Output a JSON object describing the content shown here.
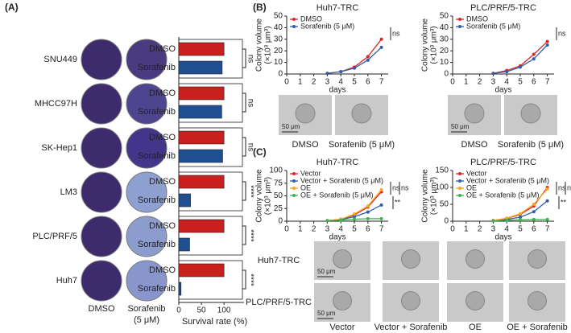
{
  "panel_labels": [
    "(A)",
    "(B)",
    "(C)"
  ],
  "dish_labels": [
    "DMSO",
    "Sorafenib",
    "(5 μM)"
  ],
  "chart_data": [
    {
      "type": "bar",
      "orientation": "horizontal",
      "categories": [
        "SNU449",
        "MHCC97H",
        "SK-Hep1",
        "LM3",
        "PLC/PRF/5",
        "Huh7"
      ],
      "category_colors": [
        "#3b3bb0",
        "#3b3bb0",
        "#3b3bb0",
        "#d83a2e",
        "#d83a2e",
        "#d83a2e"
      ],
      "series": [
        {
          "name": "DMSO",
          "color": "#c8201c",
          "values": [
            100,
            100,
            100,
            100,
            100,
            100
          ]
        },
        {
          "name": "Sorafenib",
          "color": "#1f4f91",
          "values": [
            96,
            95,
            97,
            26,
            24,
            5
          ]
        }
      ],
      "annotations": [
        "ns",
        "ns",
        "ns",
        "****",
        "****",
        "****"
      ],
      "xlabel": "Survival rate (%)",
      "xlim": [
        0,
        130
      ],
      "xticks": [
        0,
        50,
        100
      ]
    },
    {
      "type": "line",
      "title": "Huh7-TRC",
      "xlabel": "days",
      "ylabel": [
        "Colony volume",
        "(×10³ μm³)"
      ],
      "x": [
        3,
        4,
        5,
        6,
        7
      ],
      "xlim": [
        0,
        7.5
      ],
      "xticks": [
        0,
        1,
        2,
        3,
        4,
        5,
        6,
        7
      ],
      "ylim": [
        0,
        50
      ],
      "yticks": [
        0,
        10,
        20,
        30,
        40,
        50
      ],
      "series": [
        {
          "name": "DMSO",
          "color": "#e0262a",
          "values": [
            0.5,
            2,
            6,
            15,
            30
          ]
        },
        {
          "name": "Sorafenib (5 μM)",
          "color": "#2f5fa8",
          "values": [
            0.5,
            2,
            5,
            12,
            23
          ]
        }
      ],
      "annotations": [
        "ns"
      ]
    },
    {
      "type": "line",
      "title": "PLC/PRF/5-TRC",
      "xlabel": "days",
      "ylabel": [
        "Colony volume",
        "(×10³ μm³)"
      ],
      "x": [
        3,
        4,
        5,
        6,
        7
      ],
      "xlim": [
        0,
        7.5
      ],
      "xticks": [
        0,
        1,
        2,
        3,
        4,
        5,
        6,
        7
      ],
      "ylim": [
        0,
        50
      ],
      "yticks": [
        0,
        10,
        20,
        30,
        40,
        50
      ],
      "series": [
        {
          "name": "DMSO",
          "color": "#e0262a",
          "values": [
            0.5,
            3,
            7,
            17,
            28
          ]
        },
        {
          "name": "Sorafenib (5 μM)",
          "color": "#2f5fa8",
          "values": [
            0.5,
            2,
            6,
            13,
            25
          ]
        }
      ],
      "annotations": [
        "ns"
      ]
    },
    {
      "type": "line",
      "title": "Huh7-TRC",
      "xlabel": "days",
      "ylabel": [
        "Colony volume",
        "(×10³ μm³)"
      ],
      "x": [
        3,
        4,
        5,
        6,
        7
      ],
      "xlim": [
        0,
        7.5
      ],
      "xticks": [
        0,
        1,
        2,
        3,
        4,
        5,
        6,
        7
      ],
      "ylim": [
        0,
        100
      ],
      "yticks": [
        0,
        25,
        50,
        75,
        100
      ],
      "series": [
        {
          "name": "Vector",
          "color": "#e0262a",
          "values": [
            1,
            4,
            12,
            28,
            58
          ]
        },
        {
          "name": "Vector + Sorafenib (5 μM)",
          "color": "#2f5fa8",
          "values": [
            1,
            3,
            9,
            18,
            32
          ]
        },
        {
          "name": "OE",
          "color": "#f5a623",
          "values": [
            1,
            4,
            14,
            30,
            62
          ]
        },
        {
          "name": "OE + Sorafenib (5 μM)",
          "color": "#3cb44b",
          "values": [
            1,
            2,
            4,
            5,
            5
          ]
        }
      ],
      "annotations": [
        "ns",
        "**",
        "ns"
      ]
    },
    {
      "type": "line",
      "title": "PLC/PRF/5-TRC",
      "xlabel": "days",
      "ylabel": [
        "Colony volume",
        "(×10³ μm³)"
      ],
      "x": [
        3,
        4,
        5,
        6,
        7
      ],
      "xlim": [
        0,
        7.5
      ],
      "xticks": [
        0,
        1,
        2,
        3,
        4,
        5,
        6,
        7
      ],
      "ylim": [
        0,
        150
      ],
      "yticks": [
        0,
        50,
        100,
        150
      ],
      "series": [
        {
          "name": "Vector",
          "color": "#e0262a",
          "values": [
            2,
            8,
            20,
            45,
            100
          ]
        },
        {
          "name": "Vector + Sorafenib (5 μM)",
          "color": "#2f5fa8",
          "values": [
            1,
            5,
            12,
            28,
            60
          ]
        },
        {
          "name": "OE",
          "color": "#f5a623",
          "values": [
            2,
            9,
            22,
            50,
            95
          ]
        },
        {
          "name": "OE + Sorafenib (5 μM)",
          "color": "#3cb44b",
          "values": [
            1,
            3,
            4,
            5,
            5
          ]
        }
      ],
      "annotations": [
        "ns",
        "**",
        "ns"
      ]
    }
  ],
  "b_images": {
    "labels": [
      "DMSO",
      "Sorafenib (5 μM)"
    ],
    "scale_bar": "50 μm"
  },
  "c_images": {
    "rows": [
      "Huh7-TRC",
      "PLC/PRF/5-TRC"
    ],
    "columns": [
      "Vector",
      "Vector + Sorafenib",
      "OE",
      "OE + Sorafenib"
    ],
    "scale_bar": "50 μm"
  }
}
